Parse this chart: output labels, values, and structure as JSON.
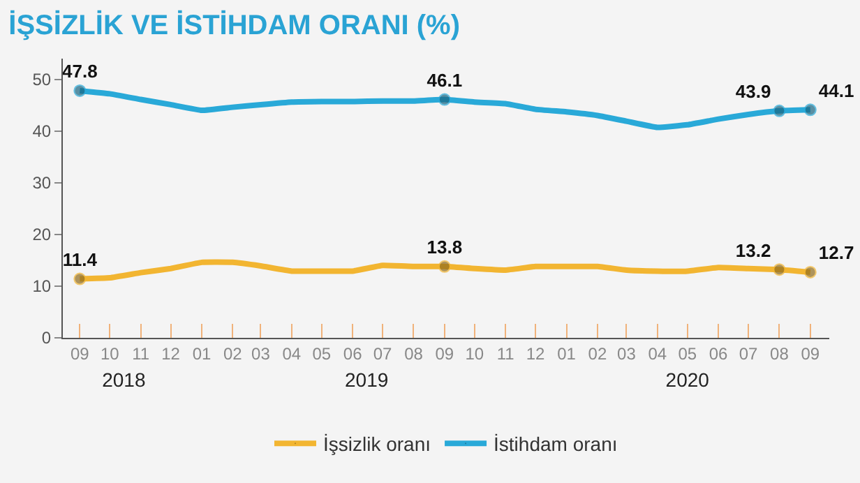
{
  "chart_data": {
    "type": "line",
    "title": "İŞSİZLİK VE İSTİHDAM ORANI (%)",
    "x": [
      "2018-09",
      "2018-10",
      "2018-11",
      "2018-12",
      "2019-01",
      "2019-02",
      "2019-03",
      "2019-04",
      "2019-05",
      "2019-06",
      "2019-07",
      "2019-08",
      "2019-09",
      "2019-10",
      "2019-11",
      "2019-12",
      "2020-01",
      "2020-02",
      "2020-03",
      "2020-04",
      "2020-05",
      "2020-06",
      "2020-07",
      "2020-08",
      "2020-09"
    ],
    "series": [
      {
        "name": "İşsizlik oranı",
        "color": "#f2b531",
        "values": [
          11.4,
          11.6,
          12.6,
          13.4,
          14.6,
          14.6,
          13.9,
          12.9,
          12.9,
          12.9,
          14.0,
          13.8,
          13.8,
          13.4,
          13.1,
          13.8,
          13.8,
          13.8,
          13.1,
          12.9,
          12.9,
          13.6,
          13.4,
          13.2,
          12.7
        ],
        "value_labels": [
          "11.4",
          null,
          null,
          null,
          null,
          null,
          null,
          null,
          null,
          null,
          null,
          null,
          "13.8",
          null,
          null,
          null,
          null,
          null,
          null,
          null,
          null,
          null,
          null,
          "13.2",
          "12.7"
        ]
      },
      {
        "name": "İstihdam oranı",
        "color": "#29a9d8",
        "values": [
          47.8,
          47.2,
          46.1,
          45.1,
          44.0,
          44.6,
          45.1,
          45.6,
          45.7,
          45.7,
          45.8,
          45.8,
          46.1,
          45.6,
          45.3,
          44.2,
          43.7,
          43.0,
          41.9,
          40.7,
          41.2,
          42.3,
          43.2,
          43.9,
          44.1
        ],
        "value_labels": [
          "47.8",
          null,
          null,
          null,
          null,
          null,
          null,
          null,
          null,
          null,
          null,
          null,
          "46.1",
          null,
          null,
          null,
          null,
          null,
          null,
          null,
          null,
          null,
          null,
          "43.9",
          "44.1"
        ]
      }
    ],
    "xlim": [
      "2018-08-15",
      "2020-09-20"
    ],
    "xticks": [
      {
        "value": "2018-09",
        "label": "09"
      },
      {
        "value": "2018-10",
        "label": "10"
      },
      {
        "value": "2018-11",
        "label": "11"
      },
      {
        "value": "2018-12",
        "label": "12"
      },
      {
        "value": "2019-01",
        "label": "01"
      },
      {
        "value": "2019-02",
        "label": "02"
      },
      {
        "value": "2019-03",
        "label": "03"
      },
      {
        "value": "2019-04",
        "label": "04"
      },
      {
        "value": "2019-05",
        "label": "05"
      },
      {
        "value": "2019-06",
        "label": "06"
      },
      {
        "value": "2019-07",
        "label": "07"
      },
      {
        "value": "2019-08",
        "label": "08"
      },
      {
        "value": "2019-09",
        "label": "09"
      },
      {
        "value": "2019-10",
        "label": "10"
      },
      {
        "value": "2019-11",
        "label": "11"
      },
      {
        "value": "2019-12",
        "label": "12"
      },
      {
        "value": "2020-01",
        "label": "01"
      },
      {
        "value": "2020-02",
        "label": "02"
      },
      {
        "value": "2020-03",
        "label": "03"
      },
      {
        "value": "2020-04",
        "label": "04"
      },
      {
        "value": "2020-05",
        "label": "05"
      },
      {
        "value": "2020-06",
        "label": "06"
      },
      {
        "value": "2020-07",
        "label": "07"
      },
      {
        "value": "2020-08",
        "label": "08"
      },
      {
        "value": "2020-09",
        "label": "09"
      }
    ],
    "x2lim": [
      "2018-08-15",
      "2020-09-20"
    ],
    "x2ticks": [
      {
        "value": "2018-10-15",
        "label": "2018"
      },
      {
        "value": "2019-06-15",
        "label": "2019"
      },
      {
        "value": "2020-05-01",
        "label": "2020"
      }
    ],
    "ylim": [
      0,
      54
    ],
    "yticks": [
      0,
      10,
      20,
      30,
      40,
      50
    ],
    "grid": false,
    "legend": "bottom",
    "line_style": "solid"
  }
}
